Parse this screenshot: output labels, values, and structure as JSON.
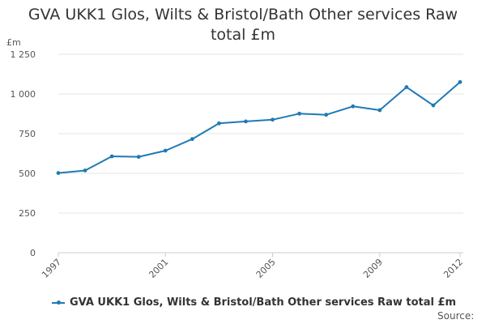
{
  "chart_data": {
    "type": "line",
    "title": "GVA UKK1 Glos, Wilts & Bristol/Bath Other services Raw total £m",
    "ylabel": "£m",
    "xlabel": "",
    "ylim": [
      0,
      1250
    ],
    "xlim": [
      1997,
      2012
    ],
    "yticks": [
      0,
      250,
      500,
      750,
      1000,
      1250
    ],
    "ytick_labels": [
      "0",
      "250",
      "500",
      "750",
      "1 000",
      "1 250"
    ],
    "xticks": [
      1997,
      2001,
      2005,
      2009,
      2012
    ],
    "xtick_labels": [
      "1997",
      "2001",
      "2005",
      "2009",
      "2012"
    ],
    "grid": true,
    "legend_position": "bottom-left",
    "series": [
      {
        "name": "GVA UKK1 Glos, Wilts & Bristol/Bath Other services Raw total £m",
        "color": "#1f7ab5",
        "x": [
          1997,
          1998,
          1999,
          2000,
          2001,
          2002,
          2003,
          2004,
          2005,
          2006,
          2007,
          2008,
          2009,
          2010,
          2011,
          2012
        ],
        "y": [
          502,
          518,
          607,
          604,
          643,
          716,
          815,
          827,
          838,
          876,
          869,
          922,
          898,
          1043,
          928,
          1075
        ]
      }
    ]
  },
  "source_label": "Source:"
}
